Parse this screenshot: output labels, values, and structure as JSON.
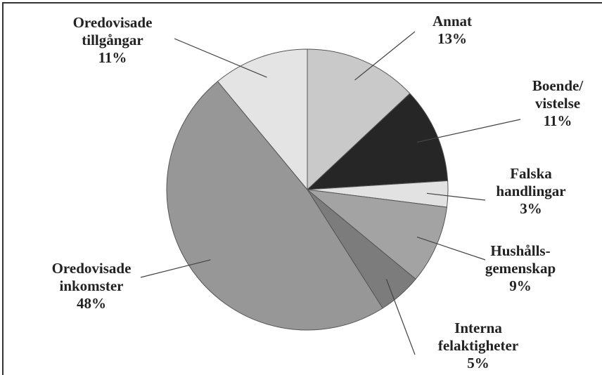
{
  "chart_data": {
    "type": "pie",
    "categories": [
      "Annat",
      "Boende/\nvistelse",
      "Falska\nhandlingar",
      "Hushålls-\ngemenskap",
      "Interna\nfelaktigheter",
      "Oredovisade\ninkomster",
      "Oredovisade\ntillgångar"
    ],
    "values": [
      13,
      11,
      3,
      9,
      5,
      48,
      11
    ],
    "value_labels": [
      "13%",
      "11%",
      "3%",
      "9%",
      "5%",
      "48%",
      "11%"
    ],
    "colors": [
      "#c9c9c9",
      "#262626",
      "#e2e2e2",
      "#a3a3a3",
      "#7c7c7c",
      "#979797",
      "#e4e4e4"
    ]
  }
}
